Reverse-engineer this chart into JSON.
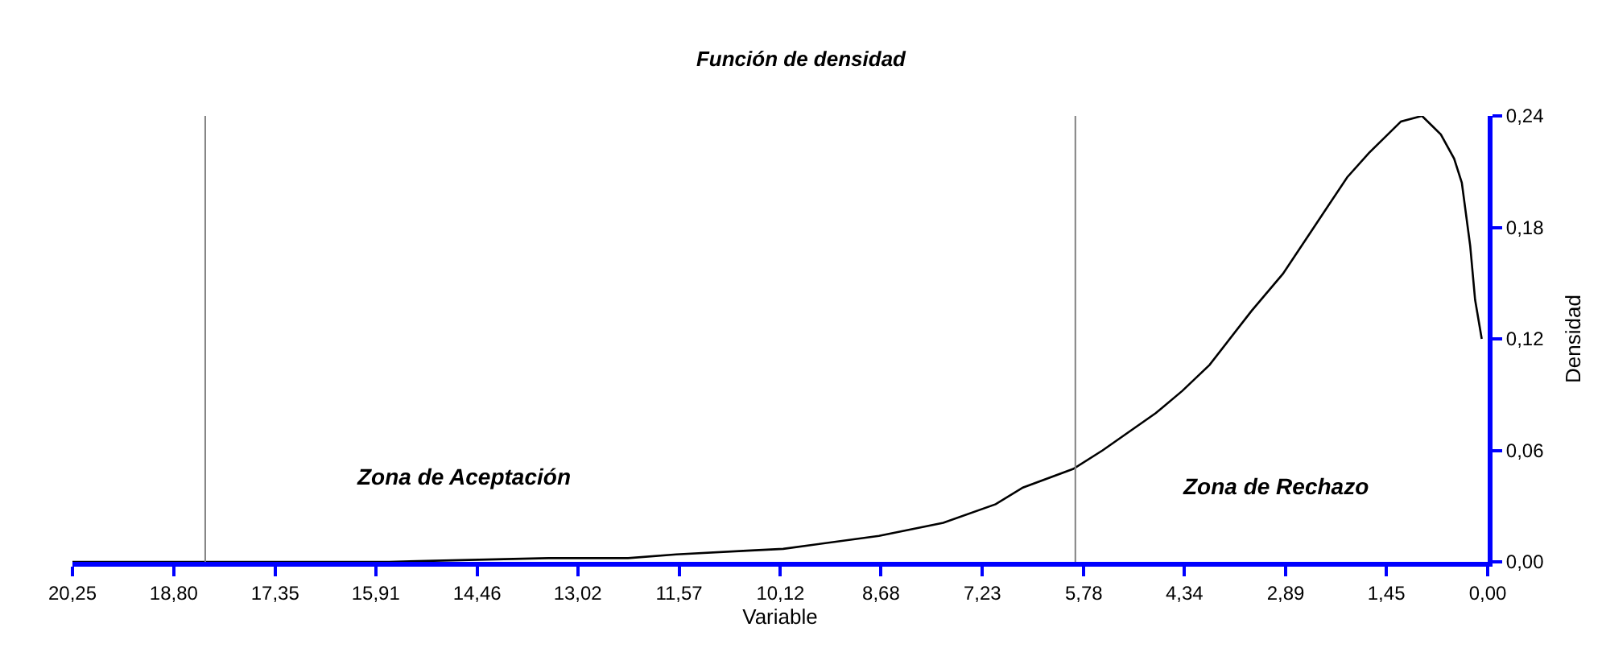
{
  "chart_data": {
    "type": "line",
    "title": "Función de densidad",
    "xlabel": "Variable",
    "ylabel": "Densidad",
    "series": [
      {
        "color": "#000000",
        "x": [
          20.25,
          15.72,
          13.44,
          12.3,
          11.61,
          10.6,
          10.08,
          8.71,
          7.79,
          7.04,
          6.65,
          5.93,
          5.51,
          4.75,
          4.37,
          3.98,
          3.38,
          2.93,
          2.47,
          2.01,
          1.7,
          1.24,
          0.94,
          0.67,
          0.48,
          0.37,
          0.25,
          0.18,
          0.085
        ],
        "values": [
          0,
          0,
          0.002,
          0.002,
          0.004,
          0.006,
          0.007,
          0.014,
          0.021,
          0.031,
          0.04,
          0.05,
          0.06,
          0.08,
          0.092,
          0.106,
          0.135,
          0.155,
          0.181,
          0.207,
          0.22,
          0.237,
          0.24,
          0.23,
          0.217,
          0.204,
          0.17,
          0.141,
          0.12
        ]
      }
    ],
    "xlim": [
      20.25,
      0
    ],
    "ylim": [
      0,
      0.24
    ],
    "xticks": [
      {
        "value": 20.25,
        "label": "20,25"
      },
      {
        "value": 18.8,
        "label": "18,80"
      },
      {
        "value": 17.35,
        "label": "17,35"
      },
      {
        "value": 15.91,
        "label": "15,91"
      },
      {
        "value": 14.46,
        "label": "14,46"
      },
      {
        "value": 13.02,
        "label": "13,02"
      },
      {
        "value": 11.57,
        "label": "11,57"
      },
      {
        "value": 10.12,
        "label": "10,12"
      },
      {
        "value": 8.68,
        "label": "8,68"
      },
      {
        "value": 7.23,
        "label": "7,23"
      },
      {
        "value": 5.78,
        "label": "5,78"
      },
      {
        "value": 4.34,
        "label": "4,34"
      },
      {
        "value": 2.89,
        "label": "2,89"
      },
      {
        "value": 1.45,
        "label": "1,45"
      },
      {
        "value": 0,
        "label": "0,00"
      }
    ],
    "yticks": [
      {
        "value": 0,
        "label": "0,00"
      },
      {
        "value": 0.06,
        "label": "0,06"
      },
      {
        "value": 0.12,
        "label": "0,12"
      },
      {
        "value": 0.18,
        "label": "0,18"
      },
      {
        "value": 0.24,
        "label": "0,24"
      }
    ],
    "ref_lines": [
      {
        "axis": "x",
        "value": 18.35,
        "color": "#808080"
      },
      {
        "axis": "x",
        "value": 5.9,
        "color": "#808080"
      }
    ],
    "annotations": [
      "Zona de Aceptación",
      "Zona de Rechazo"
    ],
    "marker": "none",
    "line_style": "solid"
  }
}
